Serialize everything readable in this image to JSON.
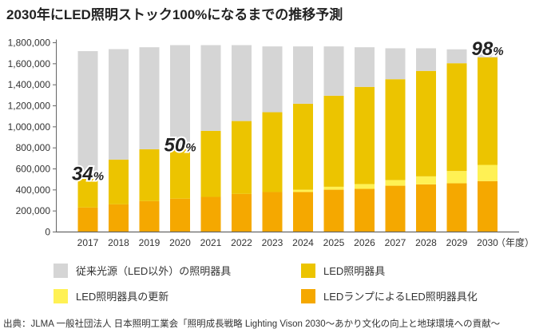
{
  "chart_data": {
    "type": "bar",
    "stacked": true,
    "title": "2030年にLED照明ストック100%になるまでの推移予測",
    "xlabel": "",
    "xunit": "（年度）",
    "ylabel": "",
    "ylim": [
      0,
      1800000
    ],
    "yticks": [
      0,
      200000,
      400000,
      600000,
      800000,
      1000000,
      1200000,
      1400000,
      1600000,
      1800000
    ],
    "ytick_labels": [
      "0",
      "200,000",
      "400,000",
      "600,000",
      "800,000",
      "1,000,000",
      "1,200,000",
      "1,400,000",
      "1,600,000",
      "1,800,000"
    ],
    "grid": false,
    "legend_position": "bottom",
    "categories": [
      "2017",
      "2018",
      "2019",
      "2020",
      "2021",
      "2022",
      "2023",
      "2024",
      "2025",
      "2026",
      "2027",
      "2028",
      "2029",
      "2030"
    ],
    "series": [
      {
        "name": "LEDランプによるLED照明器具化",
        "color": "#f5a800",
        "values": [
          233000,
          263000,
          294000,
          317000,
          334000,
          362000,
          380000,
          380000,
          402000,
          410000,
          440000,
          453000,
          463000,
          484000
        ]
      },
      {
        "name": "LED照明器具の更新",
        "color": "#fff154",
        "values": [
          0,
          0,
          0,
          0,
          0,
          0,
          0,
          22000,
          28000,
          46000,
          54000,
          76000,
          117000,
          154000
        ]
      },
      {
        "name": "LED照明器具",
        "color": "#ecc400",
        "values": [
          283000,
          426000,
          493000,
          473000,
          628000,
          693000,
          759000,
          818000,
          866000,
          924000,
          959000,
          1003000,
          1025000,
          1023000
        ]
      },
      {
        "name": "従来光源（LED以外）の照明器具",
        "color": "#d5d5d5",
        "values": [
          1204000,
          1050000,
          970000,
          987000,
          815000,
          722000,
          626000,
          545000,
          469000,
          377000,
          294000,
          215000,
          132000,
          70000
        ]
      }
    ],
    "legend_order": [
      3,
      2,
      1,
      0
    ],
    "annotations": [
      {
        "category": "2017",
        "number": "34",
        "unit": "%"
      },
      {
        "category": "2020",
        "number": "50",
        "unit": "%"
      },
      {
        "category": "2030",
        "number": "98",
        "unit": "%"
      }
    ],
    "source": "出典：JLMA 一般社団法人 日本照明工業会「照明成長戦略 Lighting Vison 2030～あかり文化の向上と地球環境への貢献～"
  }
}
